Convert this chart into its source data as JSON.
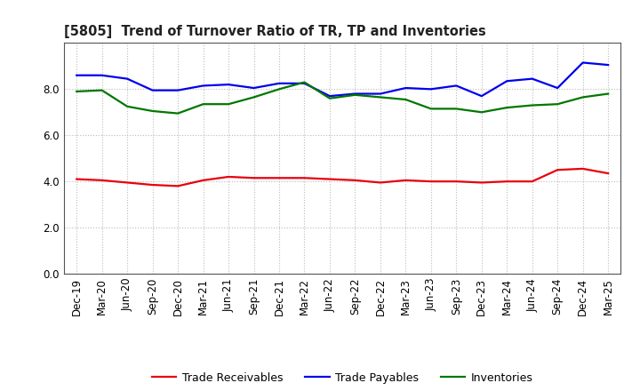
{
  "title": "[5805]  Trend of Turnover Ratio of TR, TP and Inventories",
  "labels": [
    "Dec-19",
    "Mar-20",
    "Jun-20",
    "Sep-20",
    "Dec-20",
    "Mar-21",
    "Jun-21",
    "Sep-21",
    "Dec-21",
    "Mar-22",
    "Jun-22",
    "Sep-22",
    "Dec-22",
    "Mar-23",
    "Jun-23",
    "Sep-23",
    "Dec-23",
    "Mar-24",
    "Jun-24",
    "Sep-24",
    "Dec-24",
    "Mar-25"
  ],
  "trade_receivables": [
    4.1,
    4.05,
    3.95,
    3.85,
    3.8,
    4.05,
    4.2,
    4.15,
    4.15,
    4.15,
    4.1,
    4.05,
    3.95,
    4.05,
    4.0,
    4.0,
    3.95,
    4.0,
    4.0,
    4.5,
    4.55,
    4.35
  ],
  "trade_payables": [
    8.6,
    8.6,
    8.45,
    7.95,
    7.95,
    8.15,
    8.2,
    8.05,
    8.25,
    8.25,
    7.7,
    7.8,
    7.8,
    8.05,
    8.0,
    8.15,
    7.7,
    8.35,
    8.45,
    8.05,
    9.15,
    9.05
  ],
  "inventories": [
    7.9,
    7.95,
    7.25,
    7.05,
    6.95,
    7.35,
    7.35,
    7.65,
    8.0,
    8.3,
    7.6,
    7.75,
    7.65,
    7.55,
    7.15,
    7.15,
    7.0,
    7.2,
    7.3,
    7.35,
    7.65,
    7.8
  ],
  "color_tr": "#e8000d",
  "color_tp": "#0000ee",
  "color_inv": "#007700",
  "ylim": [
    0.0,
    10.0
  ],
  "yticks": [
    0.0,
    2.0,
    4.0,
    6.0,
    8.0
  ],
  "background_plot": "#ffffff",
  "background_fig": "#ffffff",
  "grid_color": "#bbbbbb",
  "legend_labels": [
    "Trade Receivables",
    "Trade Payables",
    "Inventories"
  ]
}
